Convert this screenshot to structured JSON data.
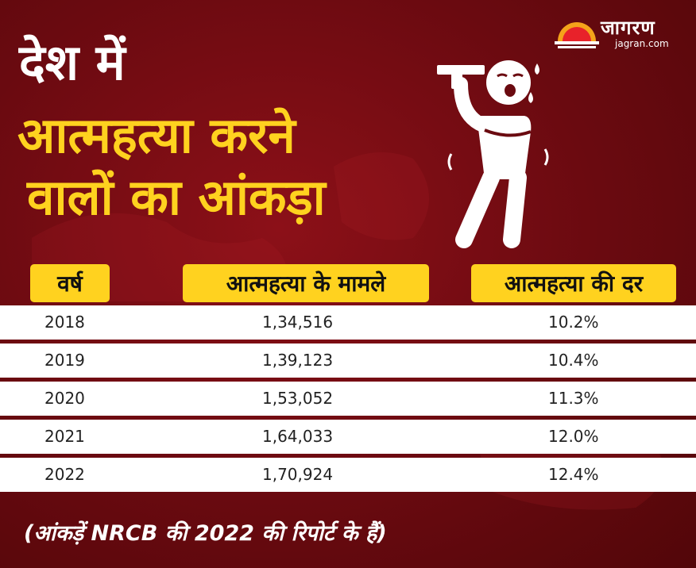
{
  "title": {
    "line1": "देश में",
    "line2": "आत्महत्या करने",
    "line3": "वालों का आंकड़ा"
  },
  "logo": {
    "name": "जागरण",
    "url": "jagran.com"
  },
  "colors": {
    "background": "#6a0a10",
    "accent": "#ffd21f",
    "row": "#ffffff"
  },
  "illustration": {
    "icon": "person-gun-to-head-icon"
  },
  "chart_data": {
    "type": "table",
    "columns": [
      "वर्ष",
      "आत्महत्या के मामले",
      "आत्महत्या की दर"
    ],
    "rows": [
      [
        "2018",
        "1,34,516",
        "10.2%"
      ],
      [
        "2019",
        "1,39,123",
        "10.4%"
      ],
      [
        "2020",
        "1,53,052",
        "11.3%"
      ],
      [
        "2021",
        "1,64,033",
        "12.0%"
      ],
      [
        "2022",
        "1,70,924",
        "12.4%"
      ]
    ],
    "footnote": "(आंकड़ें NRCB की 2022 की रिपोर्ट के हैं)"
  }
}
